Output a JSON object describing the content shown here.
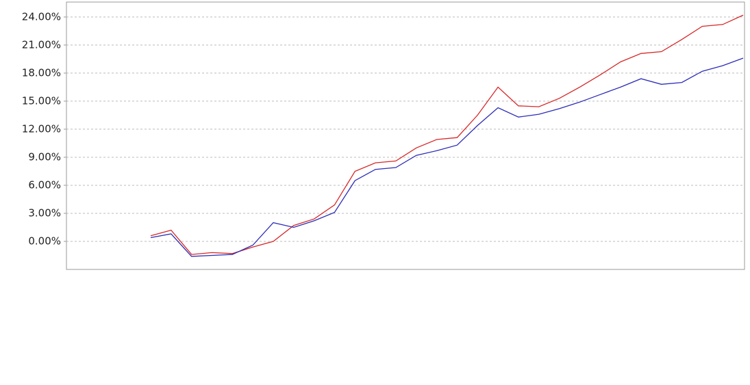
{
  "chart_data": {
    "type": "line",
    "series": [
      {
        "color": "#d62728",
        "values": [
          0.6,
          1.2,
          -1.4,
          -1.2,
          -1.3,
          -0.6,
          0,
          1.7,
          2.4,
          3.9,
          7.5,
          8.4,
          8.6,
          10.0,
          10.9,
          11.1,
          13.5,
          16.5,
          14.5,
          14.4,
          15.3,
          16.5,
          17.8,
          19.2,
          20.1,
          20.3,
          21.6,
          23.0,
          23.2,
          24.2
        ]
      },
      {
        "color": "#2b2bb8",
        "values": [
          0.4,
          0.8,
          -1.6,
          -1.5,
          -1.4,
          -0.4,
          2.0,
          1.5,
          2.2,
          3.1,
          6.5,
          7.7,
          7.9,
          9.2,
          9.7,
          10.3,
          12.4,
          14.3,
          13.3,
          13.6,
          14.2,
          14.9,
          15.7,
          16.5,
          17.4,
          16.8,
          17.0,
          18.2,
          18.8,
          19.6
        ]
      }
    ],
    "ylim": [
      -3,
      25.6
    ],
    "yticks": [
      {
        "value": 0,
        "label": "0.00%"
      },
      {
        "value": 3,
        "label": "3.00%"
      },
      {
        "value": 6,
        "label": "6.00%"
      },
      {
        "value": 9,
        "label": "9.00%"
      },
      {
        "value": 12,
        "label": "12.00%"
      },
      {
        "value": 15,
        "label": "15.00%"
      },
      {
        "value": 18,
        "label": "18.00%"
      },
      {
        "value": 21,
        "label": "21.00%"
      },
      {
        "value": 24,
        "label": "24.00%"
      }
    ],
    "grid": true
  }
}
